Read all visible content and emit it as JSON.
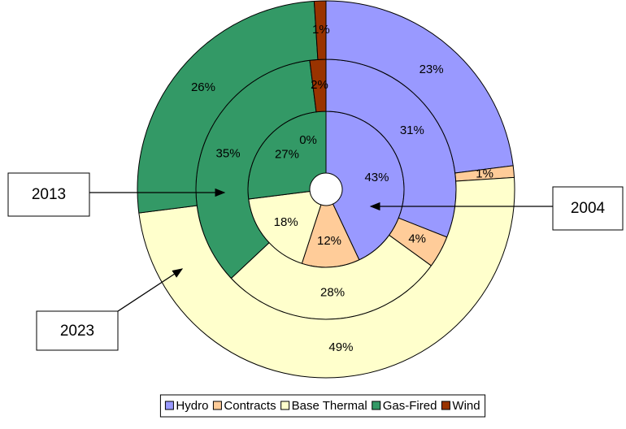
{
  "chart_data": {
    "type": "doughnut",
    "categories": [
      "Hydro",
      "Contracts",
      "Base Thermal",
      "Gas-Fired",
      "Wind"
    ],
    "colors": [
      "#9999ff",
      "#ffcc99",
      "#ffffcc",
      "#339966",
      "#993300"
    ],
    "series": [
      {
        "name": "2004",
        "values": [
          43,
          12,
          18,
          27,
          0
        ],
        "value_labels": [
          "43%",
          "12%",
          "18%",
          "27%",
          "0%"
        ]
      },
      {
        "name": "2013",
        "values": [
          31,
          4,
          28,
          35,
          2
        ],
        "value_labels": [
          "31%",
          "4%",
          "28%",
          "35%",
          "2%"
        ]
      },
      {
        "name": "2023",
        "values": [
          23,
          1,
          49,
          26,
          1
        ],
        "value_labels": [
          "23%",
          "1%",
          "49%",
          "26%",
          "1%"
        ]
      }
    ]
  }
}
